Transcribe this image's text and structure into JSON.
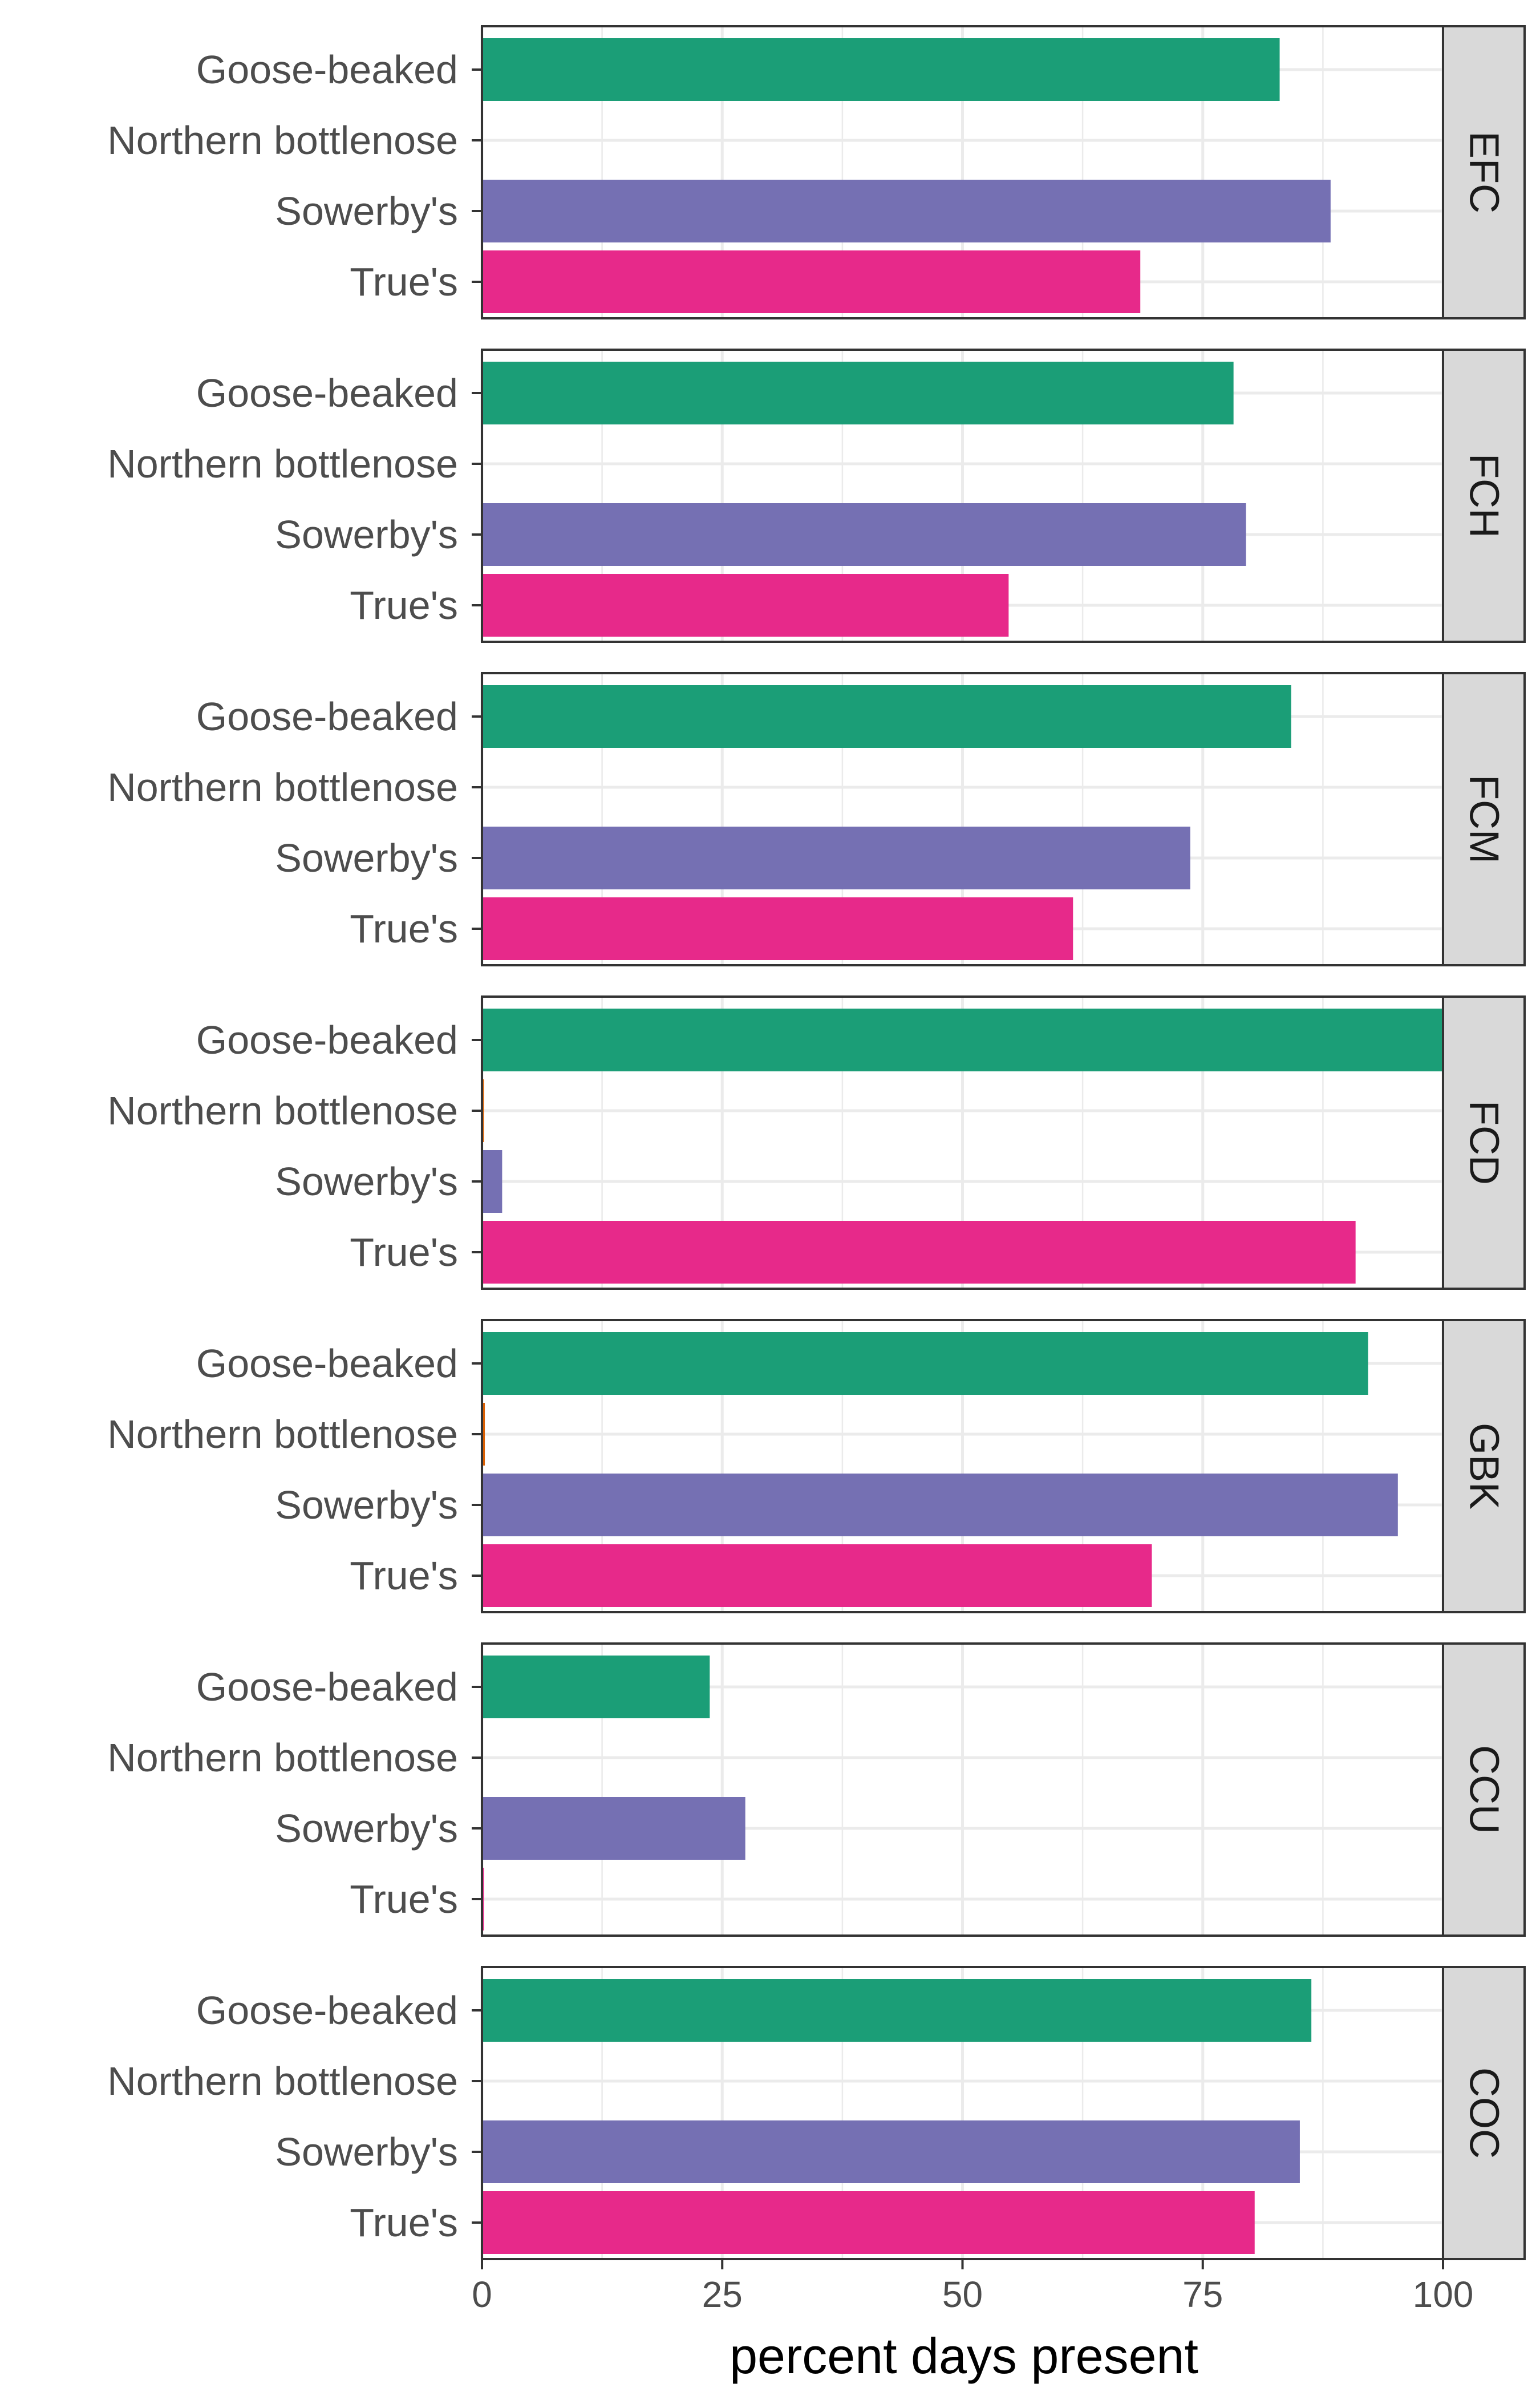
{
  "chart_data": {
    "type": "bar",
    "orientation": "horizontal",
    "facet_by": "site",
    "categories": [
      "Goose-beaked",
      "Northern bottlenose",
      "Sowerby's",
      "True's"
    ],
    "category_colors": [
      "#1b9e77",
      "#d95f02",
      "#7570b3",
      "#e7298a"
    ],
    "facets": [
      {
        "label": "EFC",
        "values": [
          83,
          0,
          88.3,
          68.5
        ]
      },
      {
        "label": "FCH",
        "values": [
          78.2,
          0,
          79.5,
          54.8
        ]
      },
      {
        "label": "FCM",
        "values": [
          84.2,
          0,
          73.7,
          61.5
        ]
      },
      {
        "label": "FCD",
        "values": [
          100,
          0.2,
          2.1,
          90.9
        ]
      },
      {
        "label": "GBK",
        "values": [
          92.2,
          0.3,
          95.3,
          69.7
        ]
      },
      {
        "label": "CCU",
        "values": [
          23.7,
          0,
          27.4,
          0.2
        ]
      },
      {
        "label": "COC",
        "values": [
          86.3,
          0,
          85.1,
          80.4
        ]
      }
    ],
    "xlim": [
      0,
      100
    ],
    "xticks": [
      0,
      25,
      50,
      75,
      100
    ],
    "xlabel": "percent days present",
    "ylabel": "",
    "title": "",
    "grid": true
  }
}
